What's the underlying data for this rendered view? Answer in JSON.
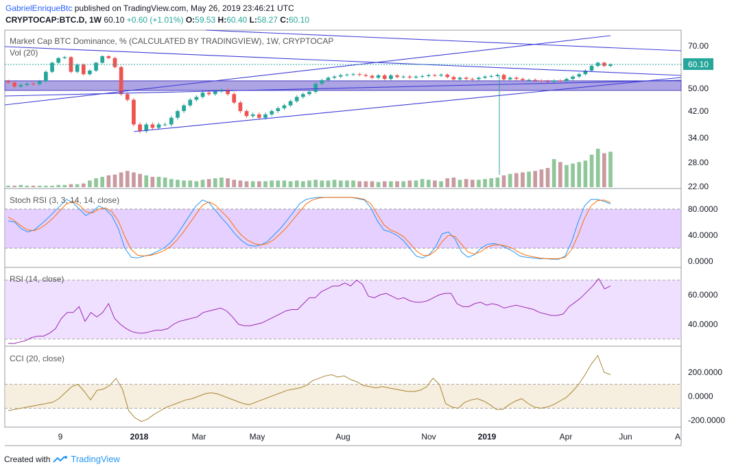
{
  "header": {
    "author": "GabrielEnriqueBtc",
    "published": "published on TradingView.com, May 26, 2019 23:46:21 UTC",
    "symbol": "CRYPTOCAP:BTC.D, 1W",
    "last": "60.10",
    "change": "+0.60 (+1.01%)",
    "o_label": "O:",
    "o": "59.53",
    "h_label": "H:",
    "h": "60.40",
    "l_label": "L:",
    "l": "58.27",
    "c_label": "C:",
    "c": "60.10"
  },
  "footer": {
    "created_with": "Created with",
    "brand": "TradingView"
  },
  "chart_data": [
    {
      "type": "candlestick",
      "title": "Market Cap BTC Dominance, % (CALCULATED BY TRADINGVIEW), 1W, CRYPTOCAP",
      "y_ticks": [
        "70.00",
        "60.10",
        "50.00",
        "42.00",
        "34.00",
        "28.00",
        "22.00"
      ],
      "last_price_label": "60.10",
      "x_ticks": [
        "9",
        "2018",
        "Mar",
        "May",
        "Aug",
        "Nov",
        "2019",
        "Apr",
        "Jun",
        "A"
      ],
      "close": [
        52.5,
        50.8,
        51.5,
        52.0,
        51.8,
        53.0,
        57.0,
        61.0,
        63.5,
        64.0,
        57.0,
        60.0,
        56.0,
        57.5,
        61.0,
        64.5,
        63.5,
        59.0,
        48.0,
        46.0,
        38.0,
        36.0,
        38.0,
        37.0,
        38.0,
        38.0,
        40.0,
        42.0,
        44.0,
        46.0,
        47.0,
        48.5,
        48.0,
        49.0,
        49.5,
        48.0,
        45.0,
        42.0,
        40.5,
        41.0,
        40.0,
        41.0,
        42.0,
        43.0,
        44.0,
        45.5,
        47.0,
        48.0,
        48.8,
        52.0,
        53.5,
        54.5,
        55.0,
        55.6,
        55.8,
        56.0,
        55.7,
        55.3,
        54.5,
        55.5,
        54.0,
        55.5,
        54.8,
        55.0,
        54.6,
        55.0,
        55.2,
        55.6,
        55.4,
        55.8,
        54.8,
        53.8,
        54.5,
        54.0,
        53.9,
        54.5,
        55.0,
        55.2,
        55.7,
        53.8,
        54.5,
        54.0,
        53.5,
        53.6,
        53.3,
        53.0,
        52.8,
        53.3,
        53.1,
        54.0,
        55.0,
        56.0,
        57.5,
        59.5,
        61.0,
        59.5,
        60.1
      ],
      "volume_panel": {
        "label": "Vol (20)",
        "values": [
          0.2,
          0.2,
          0.3,
          0.2,
          0.2,
          0.2,
          0.2,
          0.2,
          0.3,
          0.3,
          0.4,
          0.4,
          0.5,
          0.9,
          1.2,
          1.4,
          1.6,
          1.7,
          2.0,
          2.2,
          2.0,
          1.8,
          1.6,
          1.4,
          1.4,
          1.3,
          1.1,
          1.0,
          0.9,
          0.9,
          0.8,
          1.0,
          1.1,
          1.2,
          1.3,
          1.2,
          1.0,
          0.9,
          0.8,
          0.8,
          0.8,
          0.8,
          0.9,
          0.9,
          0.9,
          0.8,
          0.9,
          0.8,
          0.9,
          1.0,
          0.9,
          0.9,
          1.0,
          0.9,
          0.9,
          0.9,
          0.8,
          0.8,
          0.8,
          0.7,
          0.8,
          0.8,
          0.8,
          0.8,
          0.9,
          0.9,
          1.1,
          1.0,
          0.9,
          0.8,
          1.2,
          1.3,
          1.0,
          1.1,
          1.0,
          1.0,
          1.1,
          1.2,
          1.3,
          1.6,
          1.8,
          1.9,
          2.0,
          2.1,
          2.2,
          2.4,
          2.6,
          3.8,
          3.4,
          3.0,
          3.2,
          3.4,
          3.6,
          4.4,
          5.2,
          4.6,
          4.8
        ]
      }
    },
    {
      "type": "line",
      "title": "Stoch RSI (3, 3, 14, 14, close)",
      "y_ticks": [
        "80.0000",
        "40.0000",
        "0.0000"
      ],
      "series": [
        {
          "values": [
            62,
            60,
            50,
            45,
            48,
            56,
            65,
            75,
            85,
            95,
            90,
            80,
            70,
            76,
            85,
            80,
            70,
            50,
            20,
            6,
            5,
            8,
            10,
            15,
            20,
            28,
            40,
            55,
            70,
            85,
            94,
            90,
            78,
            66,
            55,
            42,
            32,
            25,
            23,
            25,
            30,
            40,
            50,
            62,
            75,
            88,
            95,
            97,
            98,
            98,
            98,
            98,
            98,
            98,
            96,
            94,
            82,
            62,
            48,
            45,
            40,
            32,
            20,
            8,
            5,
            10,
            22,
            42,
            45,
            34,
            14,
            6,
            10,
            20,
            26,
            27,
            25,
            20,
            15,
            8,
            6,
            5,
            4,
            4,
            3,
            3,
            8,
            30,
            60,
            85,
            95,
            95,
            92,
            88
          ]
        },
        {
          "values": [
            68,
            62,
            54,
            48,
            47,
            51,
            58,
            67,
            78,
            88,
            92,
            86,
            76,
            74,
            80,
            82,
            76,
            62,
            38,
            18,
            9,
            8,
            9,
            12,
            16,
            22,
            32,
            44,
            58,
            72,
            86,
            91,
            86,
            76,
            66,
            52,
            40,
            32,
            27,
            25,
            27,
            33,
            42,
            52,
            64,
            76,
            88,
            94,
            97,
            98,
            98,
            98,
            98,
            98,
            97,
            95,
            88,
            72,
            56,
            48,
            44,
            38,
            28,
            16,
            9,
            9,
            16,
            30,
            40,
            38,
            26,
            14,
            11,
            15,
            22,
            25,
            25,
            23,
            19,
            13,
            9,
            7,
            5,
            4,
            4,
            4,
            6,
            18,
            40,
            66,
            85,
            93,
            94,
            90
          ]
        }
      ]
    },
    {
      "type": "line",
      "title": "RSI (14, close)",
      "y_ticks": [
        "60.0000",
        "40.0000"
      ],
      "series": [
        {
          "values": [
            27,
            27,
            28,
            29,
            31,
            32,
            32,
            34,
            37,
            44,
            48,
            48,
            52,
            42,
            48,
            45,
            48,
            54,
            44,
            40,
            37,
            35,
            34,
            34,
            35,
            36,
            36,
            37,
            40,
            42,
            43,
            44,
            45,
            48,
            49,
            50,
            51,
            49,
            45,
            40,
            39,
            39,
            40,
            41,
            43,
            45,
            47,
            49,
            50,
            50,
            54,
            58,
            58,
            62,
            64,
            66,
            66,
            68,
            66,
            70,
            67,
            59,
            58,
            60,
            61,
            59,
            57,
            58,
            56,
            55,
            55,
            56,
            58,
            60,
            61,
            61,
            54,
            52,
            52,
            54,
            55,
            53,
            54,
            53,
            51,
            52,
            53,
            52,
            51,
            50,
            48,
            47,
            46,
            46,
            47,
            52,
            55,
            58,
            62,
            66,
            71,
            64,
            66
          ]
        }
      ]
    },
    {
      "type": "line",
      "title": "CCI (20, close)",
      "y_ticks": [
        "200.0000",
        "0.0000",
        "-200.0000"
      ],
      "series": [
        {
          "values": [
            -120,
            -110,
            -100,
            -90,
            -80,
            -70,
            -60,
            -50,
            -20,
            30,
            80,
            100,
            40,
            -30,
            50,
            60,
            90,
            150,
            60,
            -120,
            -180,
            -210,
            -190,
            -150,
            -120,
            -90,
            -70,
            -50,
            -30,
            -20,
            0,
            20,
            30,
            20,
            0,
            -20,
            -40,
            -60,
            -70,
            -50,
            -30,
            -10,
            10,
            30,
            50,
            60,
            70,
            90,
            130,
            150,
            170,
            180,
            160,
            170,
            140,
            120,
            90,
            80,
            70,
            80,
            70,
            60,
            50,
            40,
            40,
            50,
            80,
            150,
            100,
            -60,
            -90,
            -100,
            -50,
            -30,
            -20,
            -40,
            -70,
            -110,
            -110,
            -70,
            -40,
            -20,
            -60,
            -90,
            -100,
            -90,
            -70,
            -40,
            -10,
            40,
            100,
            180,
            270,
            340,
            200,
            180
          ]
        }
      ]
    }
  ]
}
